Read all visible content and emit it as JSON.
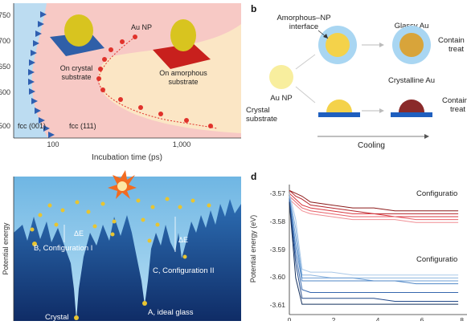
{
  "panel_a": {
    "y_ticks": [
      "750",
      "700",
      "650",
      "600",
      "550",
      "500"
    ],
    "x_ticks": [
      "100",
      "1,000"
    ],
    "x_label": "Incubation time (ps)",
    "labels": {
      "au_np": "Au NP",
      "crystal_substrate_line1": "On crystal",
      "crystal_substrate_line2": "substrate",
      "amorphous_substrate_line1": "On amorphous",
      "amorphous_substrate_line2": "substrate",
      "fcc001": "fcc (001)",
      "fcc111": "fcc (111)"
    },
    "colors": {
      "blue_region": "#bcdcf1",
      "pink_region": "#f7c9c5",
      "cream_region": "#fbe6c5",
      "dots": "#e0322b",
      "triangles": "#2f5fb0"
    }
  },
  "panel_b": {
    "letter": "b",
    "amorphous_interface_line1": "Amorphous–NP",
    "amorphous_interface_line2": "interface",
    "glassy_au": "Glassy Au",
    "container_top_line1": "Contain",
    "container_top_line2": "treat",
    "au_np": "Au NP",
    "crystalline_au": "Crystalline Au",
    "crystal_substrate_line1": "Crystal",
    "crystal_substrate_line2": "substrate",
    "container_bottom_line1": "Contain",
    "container_bottom_line2": "treat",
    "cooling": "Cooling"
  },
  "panel_c": {
    "y_label": "Potential energy",
    "delta_e": "ΔE",
    "config_one": "B, Configuration I",
    "config_two": "C, Configuration II",
    "crystal": "Crystal",
    "ideal_glass": "A, ideal glass"
  },
  "panel_d": {
    "letter": "d",
    "y_label": "Potential energy (eV)",
    "y_ticks": [
      "-3.57",
      "-3.58",
      "-3.59",
      "-3.60",
      "-3.61"
    ],
    "x_ticks": [
      "0",
      "2",
      "4",
      "6",
      "8"
    ],
    "config_one_label": "Configuratio",
    "config_two_label": "Configuratio"
  },
  "chart_data": {
    "type": "line",
    "x": [
      0,
      0.3,
      0.6,
      1,
      2,
      3,
      4,
      5,
      6,
      7,
      8
    ],
    "series": [
      {
        "values": [
          -3.57,
          -3.571,
          -3.572,
          -3.574,
          -3.575,
          -3.576,
          -3.576,
          -3.577,
          -3.577,
          -3.577,
          -3.577
        ]
      },
      {
        "values": [
          -3.57,
          -3.572,
          -3.573,
          -3.575,
          -3.576,
          -3.577,
          -3.578,
          -3.578,
          -3.578,
          -3.578,
          -3.578
        ]
      },
      {
        "values": [
          -3.571,
          -3.573,
          -3.575,
          -3.576,
          -3.577,
          -3.578,
          -3.578,
          -3.579,
          -3.579,
          -3.579,
          -3.579
        ]
      },
      {
        "values": [
          -3.572,
          -3.574,
          -3.576,
          -3.577,
          -3.578,
          -3.579,
          -3.579,
          -3.579,
          -3.58,
          -3.58,
          -3.58
        ]
      },
      {
        "values": [
          -3.573,
          -3.575,
          -3.577,
          -3.578,
          -3.579,
          -3.58,
          -3.58,
          -3.58,
          -3.581,
          -3.581,
          -3.581
        ]
      },
      {
        "values": [
          -3.571,
          -3.58,
          -3.597,
          -3.598,
          -3.598,
          -3.599,
          -3.599,
          -3.599,
          -3.599,
          -3.599,
          -3.599
        ]
      },
      {
        "values": [
          -3.572,
          -3.583,
          -3.599,
          -3.599,
          -3.6,
          -3.6,
          -3.6,
          -3.6,
          -3.6,
          -3.6,
          -3.6
        ]
      },
      {
        "values": [
          -3.572,
          -3.586,
          -3.6,
          -3.6,
          -3.6,
          -3.6,
          -3.601,
          -3.601,
          -3.601,
          -3.601,
          -3.601
        ]
      },
      {
        "values": [
          -3.573,
          -3.589,
          -3.601,
          -3.601,
          -3.601,
          -3.601,
          -3.601,
          -3.601,
          -3.602,
          -3.602,
          -3.602
        ]
      },
      {
        "values": [
          -3.573,
          -3.592,
          -3.604,
          -3.605,
          -3.605,
          -3.605,
          -3.605,
          -3.605,
          -3.605,
          -3.605,
          -3.605
        ]
      },
      {
        "values": [
          -3.574,
          -3.595,
          -3.607,
          -3.607,
          -3.607,
          -3.607,
          -3.607,
          -3.608,
          -3.608,
          -3.608,
          -3.608
        ]
      },
      {
        "values": [
          -3.574,
          -3.6,
          -3.609,
          -3.609,
          -3.609,
          -3.609,
          -3.609,
          -3.609,
          -3.609,
          -3.609,
          -3.609
        ]
      }
    ],
    "series_colors": [
      "#8b1a1a",
      "#b5242a",
      "#d9363e",
      "#e8616a",
      "#f08e94",
      "#a9c8e8",
      "#8db5df",
      "#6e9fd4",
      "#4f86c6",
      "#3567ad",
      "#234a8a",
      "#14305e"
    ],
    "ylim": [
      -3.612,
      -3.568
    ],
    "xlim": [
      0,
      8.3
    ]
  }
}
